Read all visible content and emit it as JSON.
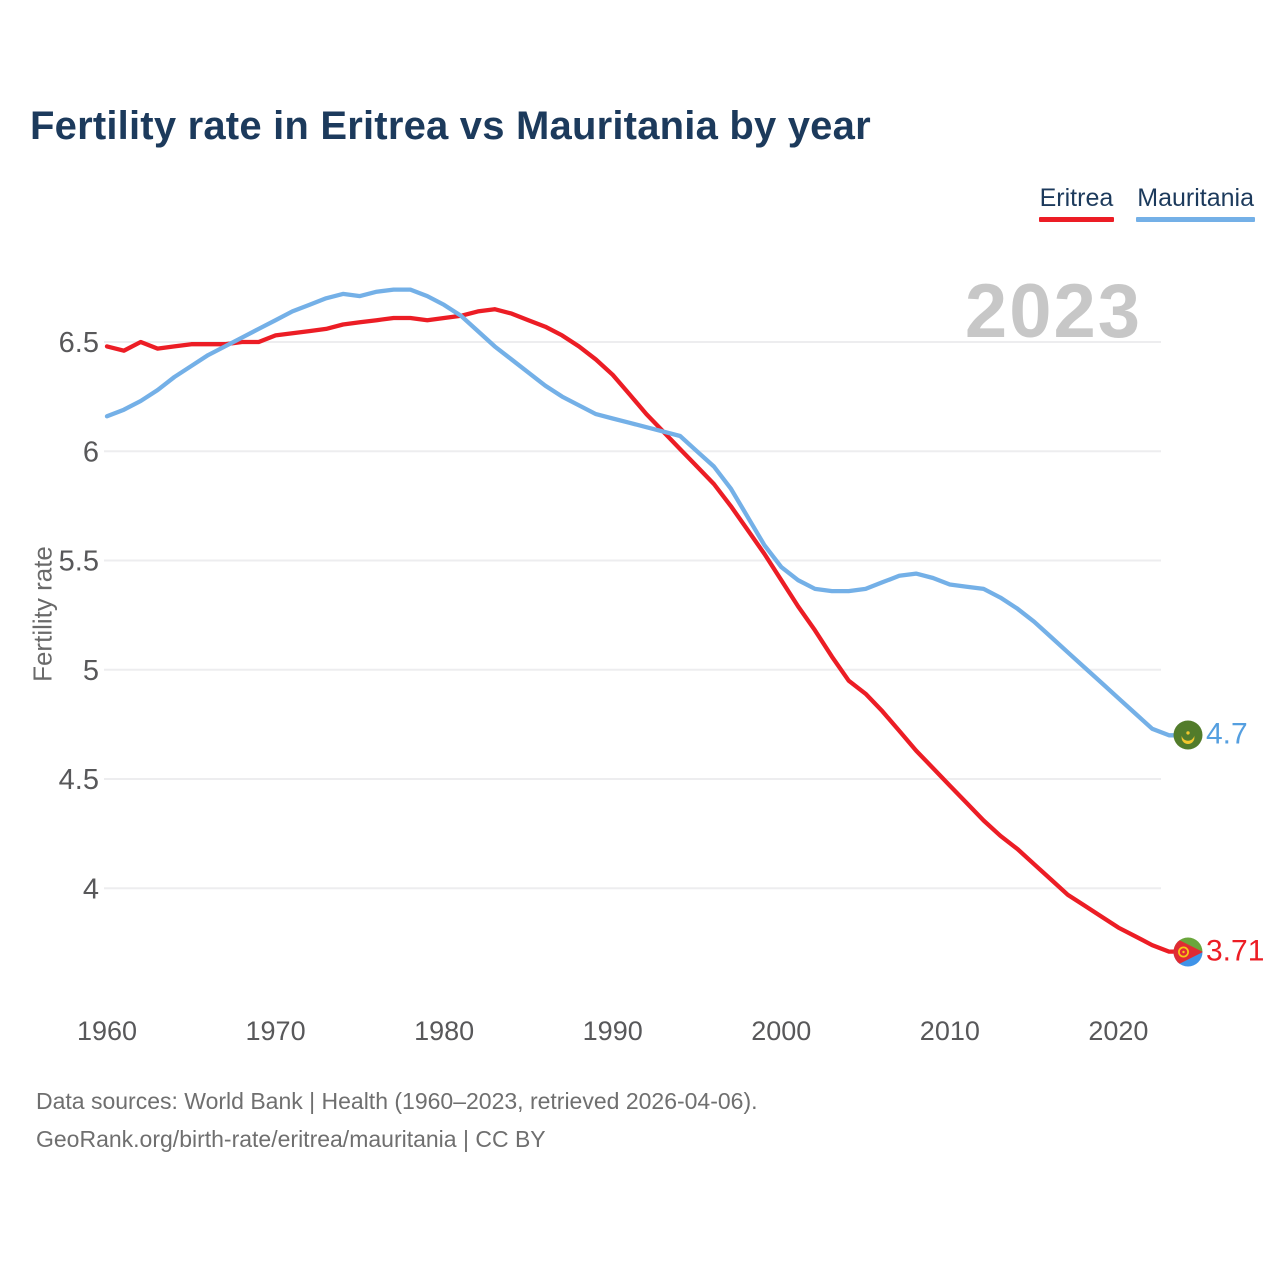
{
  "header": {
    "title": "Fertility rate in Eritrea vs Mauritania by year"
  },
  "legend": {
    "items": [
      {
        "label": "Eritrea",
        "color": "#ec1d25"
      },
      {
        "label": "Mauritania",
        "color": "#74b0e7"
      }
    ]
  },
  "watermark": "2023",
  "axes": {
    "ylabel": "Fertility rate",
    "ytick_color": "#58585a",
    "xtick_color": "#58585a",
    "grid_color": "#ededef"
  },
  "footer": {
    "line1": "Data sources: World Bank | Health (1960–2023, retrieved 2026-04-06).",
    "line2": "GeoRank.org/birth-rate/eritrea/mauritania | CC BY"
  },
  "chart_data": {
    "type": "line",
    "title": "Fertility rate in Eritrea vs Mauritania by year",
    "xlabel": "",
    "ylabel": "Fertility rate",
    "x_range": [
      1960,
      2023
    ],
    "x_step": 1,
    "ylim": [
      3.6,
      6.85
    ],
    "yticks": [
      6.5,
      6,
      5.5,
      5,
      4.5,
      4
    ],
    "xticks": [
      1960,
      1970,
      1980,
      1990,
      2000,
      2010,
      2020
    ],
    "grid": "horizontal",
    "legend_position": "top-right",
    "watermark": "2023",
    "series": [
      {
        "name": "Eritrea",
        "color": "#ec1d25",
        "label_color": "#ec1d25",
        "end_label": "3.71",
        "end_year": 2023,
        "end_value": 3.71,
        "flag": "eritrea-flag",
        "values": [
          6.48,
          6.46,
          6.5,
          6.47,
          6.48,
          6.49,
          6.49,
          6.49,
          6.5,
          6.5,
          6.53,
          6.54,
          6.55,
          6.56,
          6.58,
          6.59,
          6.6,
          6.61,
          6.61,
          6.6,
          6.61,
          6.62,
          6.64,
          6.65,
          6.63,
          6.6,
          6.57,
          6.53,
          6.48,
          6.42,
          6.35,
          6.26,
          6.17,
          6.09,
          6.01,
          5.93,
          5.85,
          5.75,
          5.64,
          5.53,
          5.41,
          5.29,
          5.18,
          5.06,
          4.95,
          4.89,
          4.81,
          4.72,
          4.63,
          4.55,
          4.47,
          4.39,
          4.31,
          4.24,
          4.18,
          4.11,
          4.04,
          3.97,
          3.92,
          3.87,
          3.82,
          3.78,
          3.74,
          3.71
        ]
      },
      {
        "name": "Mauritania",
        "color": "#74b0e7",
        "label_color": "#559fe0",
        "end_label": "4.7",
        "end_year": 2023,
        "end_value": 4.7,
        "flag": "mauritania-flag",
        "values": [
          6.16,
          6.19,
          6.23,
          6.28,
          6.34,
          6.39,
          6.44,
          6.48,
          6.52,
          6.56,
          6.6,
          6.64,
          6.67,
          6.7,
          6.72,
          6.71,
          6.73,
          6.74,
          6.74,
          6.71,
          6.67,
          6.62,
          6.55,
          6.48,
          6.42,
          6.36,
          6.3,
          6.25,
          6.21,
          6.17,
          6.15,
          6.13,
          6.11,
          6.09,
          6.07,
          6.0,
          5.93,
          5.83,
          5.7,
          5.57,
          5.47,
          5.41,
          5.37,
          5.36,
          5.36,
          5.37,
          5.4,
          5.43,
          5.44,
          5.42,
          5.39,
          5.38,
          5.37,
          5.33,
          5.28,
          5.22,
          5.15,
          5.08,
          5.01,
          4.94,
          4.87,
          4.8,
          4.73,
          4.7
        ]
      }
    ]
  }
}
